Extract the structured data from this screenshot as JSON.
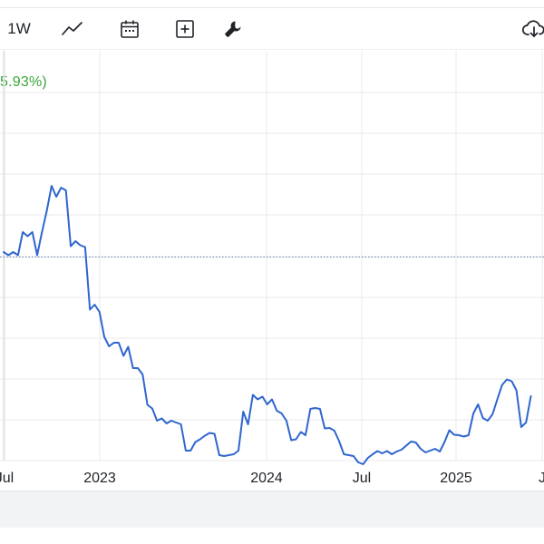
{
  "toolbar": {
    "interval_label": "1W",
    "icons": [
      "line-chart-icon",
      "calendar-icon",
      "add-indicator-icon",
      "wrench-icon",
      "cloud-download-icon"
    ]
  },
  "header": {
    "change_text": "5.93%)"
  },
  "colors": {
    "line": "#2f66cf",
    "grid": "#e8eaee",
    "reference": "#6b7fa8",
    "positive": "#3aa53a"
  },
  "chart_data": {
    "type": "line",
    "x_ticks": [
      "Jul",
      "2023",
      "2024",
      "Jul",
      "2025",
      "J"
    ],
    "grid": true,
    "reference_line_value": 0.545,
    "ylim": [
      0,
      1
    ],
    "series": [
      {
        "points": [
          [
            2022.45,
            0.556
          ],
          [
            2022.47,
            0.549
          ],
          [
            2022.49,
            0.556
          ],
          [
            2022.51,
            0.549
          ],
          [
            2022.53,
            0.6
          ],
          [
            2022.55,
            0.591
          ],
          [
            2022.57,
            0.6
          ],
          [
            2022.59,
            0.549
          ],
          [
            2022.61,
            0.6
          ],
          [
            2022.63,
            0.647
          ],
          [
            2022.65,
            0.702
          ],
          [
            2022.67,
            0.678
          ],
          [
            2022.69,
            0.698
          ],
          [
            2022.71,
            0.692
          ],
          [
            2022.73,
            0.569
          ],
          [
            2022.75,
            0.58
          ],
          [
            2022.77,
            0.571
          ],
          [
            2022.79,
            0.567
          ],
          [
            2022.81,
            0.429
          ],
          [
            2022.83,
            0.44
          ],
          [
            2022.85,
            0.424
          ],
          [
            2022.87,
            0.369
          ],
          [
            2022.89,
            0.348
          ],
          [
            2022.91,
            0.356
          ],
          [
            2022.93,
            0.356
          ],
          [
            2022.95,
            0.327
          ],
          [
            2022.97,
            0.347
          ],
          [
            2022.99,
            0.3
          ],
          [
            2023.01,
            0.3
          ],
          [
            2023.03,
            0.286
          ],
          [
            2023.05,
            0.219
          ],
          [
            2023.07,
            0.211
          ],
          [
            2023.09,
            0.184
          ],
          [
            2023.11,
            0.189
          ],
          [
            2023.13,
            0.178
          ],
          [
            2023.15,
            0.184
          ],
          [
            2023.17,
            0.18
          ],
          [
            2023.19,
            0.176
          ],
          [
            2023.21,
            0.118
          ],
          [
            2023.23,
            0.118
          ],
          [
            2023.25,
            0.137
          ],
          [
            2023.27,
            0.143
          ],
          [
            2023.29,
            0.151
          ],
          [
            2023.31,
            0.157
          ],
          [
            2023.33,
            0.155
          ],
          [
            2023.35,
            0.108
          ],
          [
            2023.37,
            0.106
          ],
          [
            2023.39,
            0.108
          ],
          [
            2023.41,
            0.11
          ],
          [
            2023.43,
            0.118
          ],
          [
            2023.45,
            0.204
          ],
          [
            2023.47,
            0.176
          ],
          [
            2023.49,
            0.241
          ],
          [
            2023.51,
            0.231
          ],
          [
            2023.53,
            0.237
          ],
          [
            2023.55,
            0.22
          ],
          [
            2023.57,
            0.231
          ],
          [
            2023.59,
            0.206
          ],
          [
            2023.61,
            0.2
          ],
          [
            2023.63,
            0.184
          ],
          [
            2023.65,
            0.141
          ],
          [
            2023.67,
            0.143
          ],
          [
            2023.69,
            0.159
          ],
          [
            2023.71,
            0.152
          ],
          [
            2023.73,
            0.21
          ],
          [
            2023.75,
            0.212
          ],
          [
            2023.77,
            0.21
          ],
          [
            2023.79,
            0.167
          ],
          [
            2023.81,
            0.168
          ],
          [
            2023.83,
            0.162
          ],
          [
            2023.85,
            0.139
          ],
          [
            2023.87,
            0.11
          ],
          [
            2023.89,
            0.108
          ],
          [
            2023.91,
            0.106
          ],
          [
            2023.93,
            0.092
          ],
          [
            2023.95,
            0.088
          ],
          [
            2023.97,
            0.102
          ],
          [
            2023.99,
            0.11
          ],
          [
            2024.01,
            0.117
          ],
          [
            2024.03,
            0.112
          ],
          [
            2024.05,
            0.117
          ],
          [
            2024.07,
            0.11
          ],
          [
            2024.09,
            0.116
          ],
          [
            2024.11,
            0.12
          ],
          [
            2024.13,
            0.129
          ],
          [
            2024.15,
            0.138
          ],
          [
            2024.17,
            0.136
          ],
          [
            2024.19,
            0.122
          ],
          [
            2024.21,
            0.114
          ],
          [
            2024.23,
            0.118
          ],
          [
            2024.25,
            0.122
          ],
          [
            2024.27,
            0.116
          ],
          [
            2024.29,
            0.137
          ],
          [
            2024.31,
            0.163
          ],
          [
            2024.33,
            0.153
          ],
          [
            2024.35,
            0.152
          ],
          [
            2024.37,
            0.149
          ],
          [
            2024.39,
            0.152
          ],
          [
            2024.41,
            0.2
          ],
          [
            2024.43,
            0.22
          ],
          [
            2024.45,
            0.19
          ],
          [
            2024.47,
            0.184
          ],
          [
            2024.49,
            0.198
          ],
          [
            2024.51,
            0.231
          ],
          [
            2024.53,
            0.263
          ],
          [
            2024.55,
            0.275
          ],
          [
            2024.57,
            0.271
          ],
          [
            2024.59,
            0.251
          ],
          [
            2024.61,
            0.17
          ],
          [
            2024.63,
            0.18
          ],
          [
            2024.65,
            0.238
          ]
        ]
      }
    ]
  }
}
